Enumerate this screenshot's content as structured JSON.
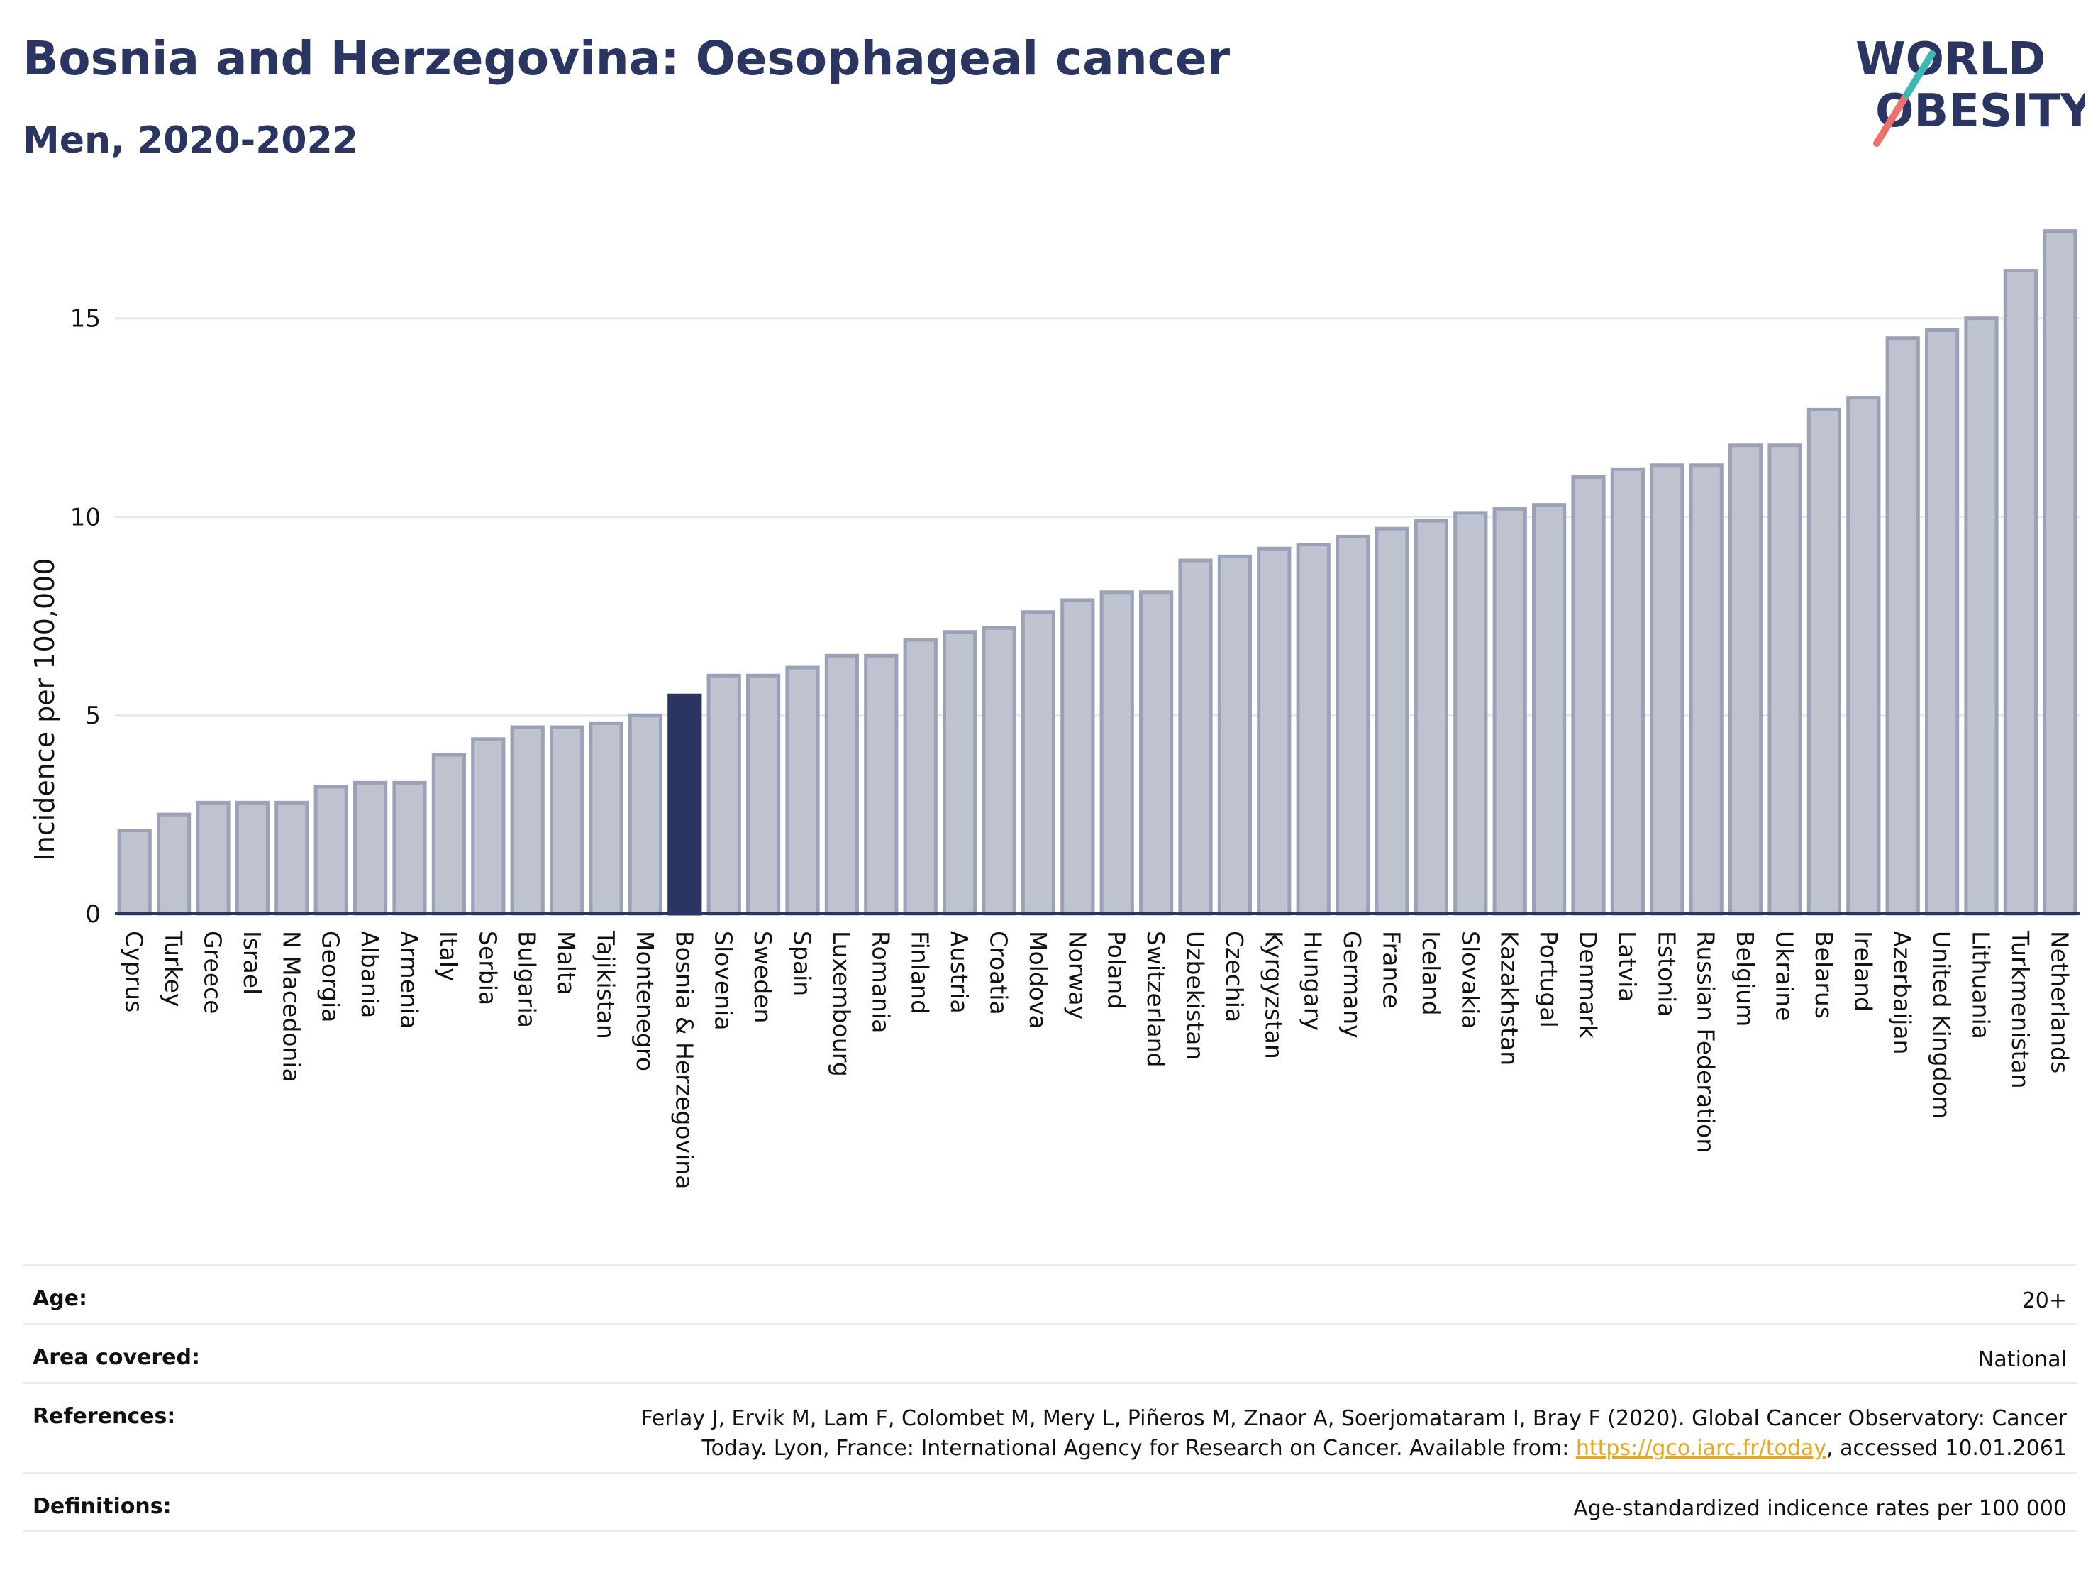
{
  "header": {
    "title": "Bosnia and Herzegovina: Oesophageal cancer",
    "subtitle": "Men, 2020-2022"
  },
  "logo": {
    "line1": "WORLD",
    "line2": "OBESITY",
    "icon": "world-obesity-logo"
  },
  "colors": {
    "bar": "#bfc3d0",
    "bar_border": "#9ba1b6",
    "highlight": "#2b3561",
    "grid": "#e6e8ee",
    "axis": "#2b3561",
    "link": "#e8a81a"
  },
  "chart_data": {
    "type": "bar",
    "title": "Bosnia and Herzegovina: Oesophageal cancer",
    "subtitle": "Men, 2020-2022",
    "xlabel": "",
    "ylabel": "Incidence per 100,000",
    "ylim": [
      0,
      17.3
    ],
    "yticks": [
      0,
      5,
      10,
      15
    ],
    "grid": true,
    "highlight": "Bosnia & Herzegovina",
    "categories": [
      "Cyprus",
      "Turkey",
      "Greece",
      "Israel",
      "N Macedonia",
      "Georgia",
      "Albania",
      "Armenia",
      "Italy",
      "Serbia",
      "Bulgaria",
      "Malta",
      "Tajikistan",
      "Montenegro",
      "Bosnia & Herzegovina",
      "Slovenia",
      "Sweden",
      "Spain",
      "Luxembourg",
      "Romania",
      "Finland",
      "Austria",
      "Croatia",
      "Moldova",
      "Norway",
      "Poland",
      "Switzerland",
      "Uzbekistan",
      "Czechia",
      "Kyrgyzstan",
      "Hungary",
      "Germany",
      "France",
      "Iceland",
      "Slovakia",
      "Kazakhstan",
      "Portugal",
      "Denmark",
      "Latvia",
      "Estonia",
      "Russian Federation",
      "Belgium",
      "Ukraine",
      "Belarus",
      "Ireland",
      "Azerbaijan",
      "United Kingdom",
      "Lithuania",
      "Turkmenistan",
      "Netherlands"
    ],
    "values": [
      2.1,
      2.5,
      2.8,
      2.8,
      2.8,
      3.2,
      3.3,
      3.3,
      4.0,
      4.4,
      4.7,
      4.7,
      4.8,
      5.0,
      5.5,
      6.0,
      6.0,
      6.2,
      6.5,
      6.5,
      6.9,
      7.1,
      7.2,
      7.6,
      7.9,
      8.1,
      8.1,
      8.9,
      9.0,
      9.2,
      9.3,
      9.5,
      9.7,
      9.9,
      10.1,
      10.2,
      10.3,
      11.0,
      11.2,
      11.3,
      11.3,
      11.8,
      11.8,
      12.7,
      13.0,
      14.5,
      14.7,
      15.0,
      16.2,
      17.2
    ]
  },
  "info": {
    "age_label": "Age:",
    "age_value": "20+",
    "area_label": "Area covered:",
    "area_value": "National",
    "references_label": "References:",
    "references_line1": "Ferlay J, Ervik M, Lam F, Colombet M, Mery L, Piñeros M, Znaor A, Soerjomataram I, Bray F (2020). Global Cancer Observatory: Cancer",
    "references_line2_pre": "Today. Lyon, France: International Agency for Research on Cancer. Available from: ",
    "references_link": "https://gco.iarc.fr/today",
    "references_line2_post": ", accessed 10.01.2061",
    "definitions_label": "Definitions:",
    "definitions_value": "Age-standardized indicence rates per 100 000"
  }
}
